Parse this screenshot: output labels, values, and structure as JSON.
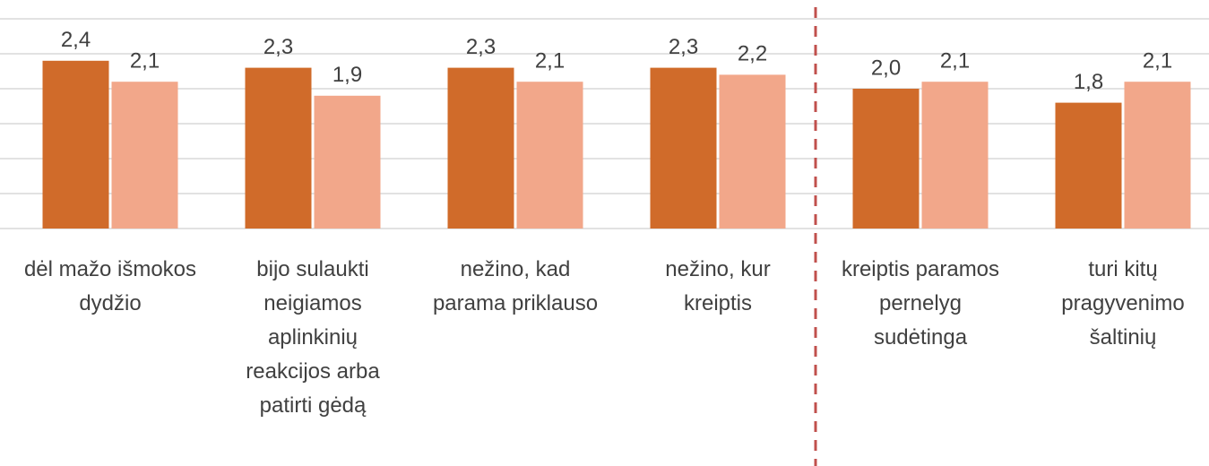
{
  "chart_data": {
    "type": "bar",
    "categories": [
      "dėl mažo išmokos dydžio",
      "bijo sulaukti neigiamos aplinkinių reakcijos arba patirti gėdą",
      "nežino, kad parama priklauso",
      "nežino, kur kreiptis",
      "kreiptis paramos pernelyg sudėtinga",
      "turi kitų pragyvenimo šaltinių"
    ],
    "series": [
      {
        "color": "#d06b2a",
        "values": [
          2.4,
          2.3,
          2.3,
          2.3,
          2.0,
          1.8
        ],
        "value_labels": [
          "2,4",
          "2,3",
          "2,3",
          "2,3",
          "2,0",
          "1,8"
        ]
      },
      {
        "color": "#f2a78a",
        "values": [
          2.1,
          1.9,
          2.1,
          2.2,
          2.1,
          2.1
        ],
        "value_labels": [
          "2,1",
          "1,9",
          "2,1",
          "2,2",
          "2,1",
          "2,1"
        ]
      }
    ],
    "ylim": [
      0,
      3
    ],
    "yticks": [
      0,
      0.5,
      1,
      1.5,
      2,
      2.5,
      3
    ],
    "grid": true
  }
}
